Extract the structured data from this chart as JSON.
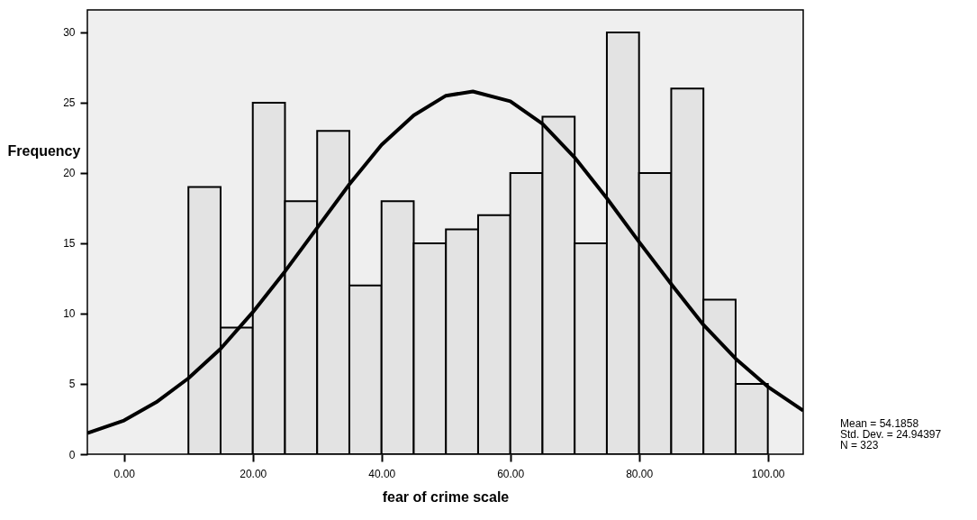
{
  "chart_data": {
    "type": "histogram",
    "xlabel": "fear of crime scale",
    "ylabel": "Frequency",
    "bins": [
      10,
      15,
      20,
      25,
      30,
      35,
      40,
      45,
      50,
      55,
      60,
      65,
      70,
      75,
      80,
      85,
      90,
      95,
      100
    ],
    "values": [
      19,
      9,
      25,
      18,
      23,
      12,
      18,
      15,
      16,
      17,
      20,
      24,
      15,
      30,
      20,
      26,
      11,
      5
    ],
    "color": "#e3e3e3",
    "series": [
      {
        "type": "line",
        "color": "#000000",
        "x": [
          -5.7,
          0,
          5,
          10,
          15,
          20,
          25,
          30,
          35,
          40,
          45,
          50,
          54.19,
          60,
          65,
          70,
          75,
          80,
          85,
          90,
          95,
          100,
          105.5
        ],
        "values": [
          1.5,
          2.4,
          3.7,
          5.4,
          7.5,
          10.1,
          13.0,
          16.1,
          19.2,
          22.0,
          24.1,
          25.5,
          25.8,
          25.1,
          23.5,
          21.1,
          18.2,
          15.1,
          12.1,
          9.2,
          6.8,
          4.8,
          3.1
        ]
      }
    ],
    "xlim": [
      -5.7,
      105.5
    ],
    "ylim": [
      0,
      31.6
    ],
    "xticks": [
      {
        "value": 0,
        "label": "0.00"
      },
      {
        "value": 20,
        "label": "20.00"
      },
      {
        "value": 40,
        "label": "40.00"
      },
      {
        "value": 60,
        "label": "60.00"
      },
      {
        "value": 80,
        "label": "80.00"
      },
      {
        "value": 100,
        "label": "100.00"
      }
    ],
    "yticks": [
      0,
      5,
      10,
      15,
      20,
      25,
      30
    ],
    "annotations": [
      "Mean = 54.1858",
      "Std. Dev. = 24.94397",
      "N = 323"
    ]
  }
}
